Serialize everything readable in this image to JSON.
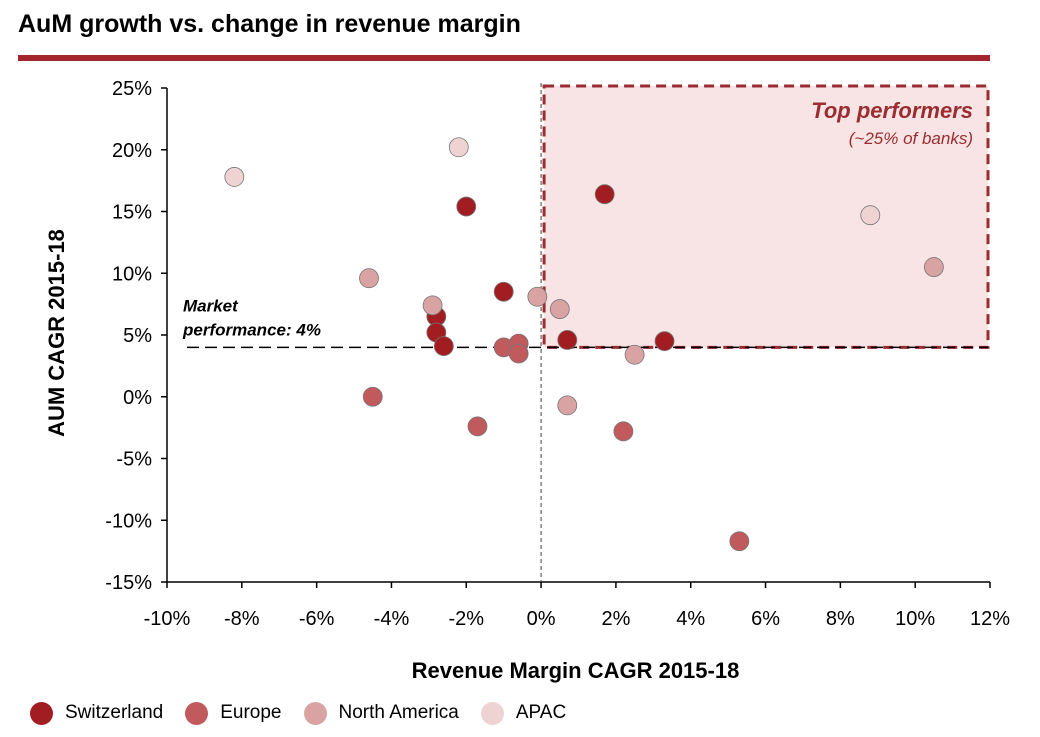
{
  "header": {
    "title": "AuM growth vs. change in revenue margin"
  },
  "colors": {
    "accent": "#a3262c",
    "top_box_fill": "#f8e3e5",
    "top_box_border": "#9b2c30"
  },
  "chart_data": {
    "type": "scatter",
    "xlabel": "Revenue Margin CAGR 2015-18",
    "ylabel": "AUM CAGR 2015-18",
    "xlim": [
      -10,
      12
    ],
    "ylim": [
      -15,
      25
    ],
    "xticks": [
      "-10%",
      "-8%",
      "-6%",
      "-4%",
      "-2%",
      "0%",
      "2%",
      "4%",
      "6%",
      "8%",
      "10%",
      "12%"
    ],
    "yticks": [
      "25%",
      "20%",
      "15%",
      "10%",
      "5%",
      "0%",
      "-5%",
      "-10%",
      "-15%"
    ],
    "grid": false,
    "legend_position": "bottom-left",
    "reference_line": {
      "y": 4,
      "label_line1": "Market",
      "label_line2": "performance: 4%"
    },
    "highlight_box": {
      "x_range": [
        0,
        12
      ],
      "y_range": [
        4,
        25
      ],
      "title": "Top performers",
      "subtitle": "(~25% of banks)"
    },
    "series": [
      {
        "name": "Switzerland",
        "color": "#a11d22",
        "points": [
          [
            -2.0,
            15.4
          ],
          [
            1.7,
            16.4
          ],
          [
            -1.0,
            8.5
          ],
          [
            -2.8,
            6.5
          ],
          [
            -2.8,
            5.2
          ],
          [
            -2.6,
            4.1
          ],
          [
            0.7,
            4.6
          ],
          [
            3.3,
            4.5
          ]
        ]
      },
      {
        "name": "Europe",
        "color": "#c05a5c",
        "points": [
          [
            -4.5,
            0.0
          ],
          [
            -1.7,
            -2.4
          ],
          [
            -1.0,
            4.0
          ],
          [
            -0.6,
            4.3
          ],
          [
            -0.6,
            3.5
          ],
          [
            2.2,
            -2.8
          ],
          [
            5.3,
            -11.7
          ]
        ]
      },
      {
        "name": "North America",
        "color": "#d9a3a4",
        "points": [
          [
            -4.6,
            9.6
          ],
          [
            -2.9,
            7.4
          ],
          [
            -0.1,
            8.1
          ],
          [
            0.5,
            7.1
          ],
          [
            2.5,
            3.4
          ],
          [
            10.5,
            10.5
          ],
          [
            0.7,
            -0.7
          ]
        ]
      },
      {
        "name": "APAC",
        "color": "#efd3d3",
        "points": [
          [
            -8.2,
            17.8
          ],
          [
            -2.2,
            20.2
          ],
          [
            8.8,
            14.7
          ]
        ]
      }
    ]
  }
}
